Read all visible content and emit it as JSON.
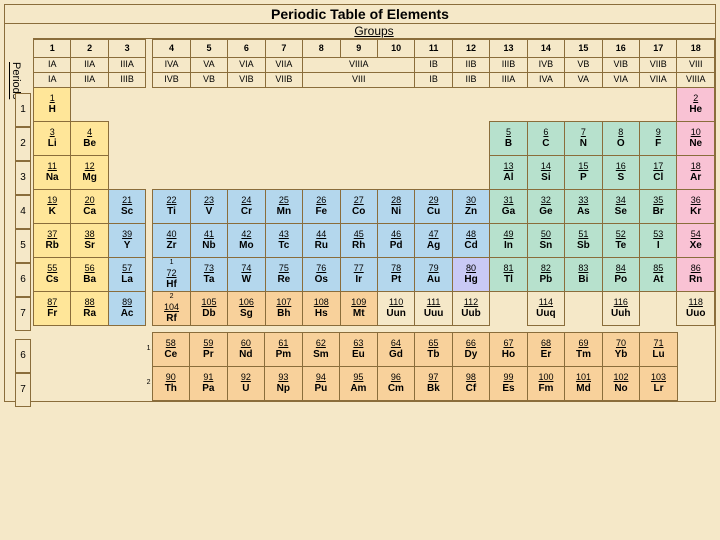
{
  "title": "Periodic Table of Elements",
  "groups_label": "Groups",
  "periods_label": "Periods",
  "group_numbers": [
    "1",
    "2",
    "3",
    "4",
    "5",
    "6",
    "7",
    "8",
    "9",
    "10",
    "11",
    "12",
    "13",
    "14",
    "15",
    "16",
    "17",
    "18"
  ],
  "group_roman1": [
    "IA",
    "IIA",
    "IIIA",
    "IVA",
    "VA",
    "VIA",
    "VIIA",
    "VIIIA",
    "IB",
    "IIB",
    "IIIB",
    "IVB",
    "VB",
    "VIB",
    "VIIB",
    "VIII"
  ],
  "group_roman2": [
    "IA",
    "IIA",
    "IIIB",
    "IVB",
    "VB",
    "VIB",
    "VIIB",
    "VIII",
    "IB",
    "IIB",
    "IIIA",
    "IVA",
    "VA",
    "VIA",
    "VIIA",
    "VIIIA"
  ],
  "colors": {
    "yellow": "#ffe699",
    "green": "#b7e1cd",
    "blue": "#b4d7ed",
    "pink": "#f9c2d4",
    "orange": "#f8d19b",
    "peri": "#c9c9f5",
    "bg": "#f5e8c8"
  },
  "periods": [
    {
      "n": "1",
      "row": [
        {
          "num": "1",
          "sym": "H",
          "c": "yellow"
        },
        null,
        null,
        null,
        null,
        null,
        null,
        null,
        null,
        null,
        null,
        null,
        null,
        null,
        null,
        null,
        null,
        {
          "num": "2",
          "sym": "He",
          "c": "pink"
        }
      ]
    },
    {
      "n": "2",
      "row": [
        {
          "num": "3",
          "sym": "Li",
          "c": "yellow"
        },
        {
          "num": "4",
          "sym": "Be",
          "c": "yellow"
        },
        null,
        null,
        null,
        null,
        null,
        null,
        null,
        null,
        null,
        null,
        {
          "num": "5",
          "sym": "B",
          "c": "green"
        },
        {
          "num": "6",
          "sym": "C",
          "c": "green"
        },
        {
          "num": "7",
          "sym": "N",
          "c": "green"
        },
        {
          "num": "8",
          "sym": "O",
          "c": "green"
        },
        {
          "num": "9",
          "sym": "F",
          "c": "green"
        },
        {
          "num": "10",
          "sym": "Ne",
          "c": "pink"
        }
      ]
    },
    {
      "n": "3",
      "row": [
        {
          "num": "11",
          "sym": "Na",
          "c": "yellow"
        },
        {
          "num": "12",
          "sym": "Mg",
          "c": "yellow"
        },
        null,
        null,
        null,
        null,
        null,
        null,
        null,
        null,
        null,
        null,
        {
          "num": "13",
          "sym": "Al",
          "c": "green"
        },
        {
          "num": "14",
          "sym": "Si",
          "c": "green"
        },
        {
          "num": "15",
          "sym": "P",
          "c": "green"
        },
        {
          "num": "16",
          "sym": "S",
          "c": "green"
        },
        {
          "num": "17",
          "sym": "Cl",
          "c": "green"
        },
        {
          "num": "18",
          "sym": "Ar",
          "c": "pink"
        }
      ]
    },
    {
      "n": "4",
      "row": [
        {
          "num": "19",
          "sym": "K",
          "c": "yellow"
        },
        {
          "num": "20",
          "sym": "Ca",
          "c": "yellow"
        },
        {
          "num": "21",
          "sym": "Sc",
          "c": "blue"
        },
        {
          "num": "22",
          "sym": "Ti",
          "c": "blue"
        },
        {
          "num": "23",
          "sym": "V",
          "c": "blue"
        },
        {
          "num": "24",
          "sym": "Cr",
          "c": "blue"
        },
        {
          "num": "25",
          "sym": "Mn",
          "c": "blue"
        },
        {
          "num": "26",
          "sym": "Fe",
          "c": "blue"
        },
        {
          "num": "27",
          "sym": "Co",
          "c": "blue"
        },
        {
          "num": "28",
          "sym": "Ni",
          "c": "blue"
        },
        {
          "num": "29",
          "sym": "Cu",
          "c": "blue"
        },
        {
          "num": "30",
          "sym": "Zn",
          "c": "blue"
        },
        {
          "num": "31",
          "sym": "Ga",
          "c": "green"
        },
        {
          "num": "32",
          "sym": "Ge",
          "c": "green"
        },
        {
          "num": "33",
          "sym": "As",
          "c": "green"
        },
        {
          "num": "34",
          "sym": "Se",
          "c": "green"
        },
        {
          "num": "35",
          "sym": "Br",
          "c": "green"
        },
        {
          "num": "36",
          "sym": "Kr",
          "c": "pink"
        }
      ]
    },
    {
      "n": "5",
      "row": [
        {
          "num": "37",
          "sym": "Rb",
          "c": "yellow"
        },
        {
          "num": "38",
          "sym": "Sr",
          "c": "yellow"
        },
        {
          "num": "39",
          "sym": "Y",
          "c": "blue"
        },
        {
          "num": "40",
          "sym": "Zr",
          "c": "blue"
        },
        {
          "num": "41",
          "sym": "Nb",
          "c": "blue"
        },
        {
          "num": "42",
          "sym": "Mo",
          "c": "blue"
        },
        {
          "num": "43",
          "sym": "Tc",
          "c": "blue"
        },
        {
          "num": "44",
          "sym": "Ru",
          "c": "blue"
        },
        {
          "num": "45",
          "sym": "Rh",
          "c": "blue"
        },
        {
          "num": "46",
          "sym": "Pd",
          "c": "blue"
        },
        {
          "num": "47",
          "sym": "Ag",
          "c": "blue"
        },
        {
          "num": "48",
          "sym": "Cd",
          "c": "blue"
        },
        {
          "num": "49",
          "sym": "In",
          "c": "green"
        },
        {
          "num": "50",
          "sym": "Sn",
          "c": "green"
        },
        {
          "num": "51",
          "sym": "Sb",
          "c": "green"
        },
        {
          "num": "52",
          "sym": "Te",
          "c": "green"
        },
        {
          "num": "53",
          "sym": "I",
          "c": "green"
        },
        {
          "num": "54",
          "sym": "Xe",
          "c": "pink"
        }
      ]
    },
    {
      "n": "6",
      "row": [
        {
          "num": "55",
          "sym": "Cs",
          "c": "yellow"
        },
        {
          "num": "56",
          "sym": "Ba",
          "c": "yellow"
        },
        {
          "num": "57",
          "sym": "La",
          "c": "blue"
        },
        {
          "num": "72",
          "sym": "Hf",
          "c": "blue",
          "sup": "1"
        },
        {
          "num": "73",
          "sym": "Ta",
          "c": "blue"
        },
        {
          "num": "74",
          "sym": "W",
          "c": "blue"
        },
        {
          "num": "75",
          "sym": "Re",
          "c": "blue"
        },
        {
          "num": "76",
          "sym": "Os",
          "c": "blue"
        },
        {
          "num": "77",
          "sym": "Ir",
          "c": "blue"
        },
        {
          "num": "78",
          "sym": "Pt",
          "c": "blue"
        },
        {
          "num": "79",
          "sym": "Au",
          "c": "blue"
        },
        {
          "num": "80",
          "sym": "Hg",
          "c": "peri"
        },
        {
          "num": "81",
          "sym": "Tl",
          "c": "green"
        },
        {
          "num": "82",
          "sym": "Pb",
          "c": "green"
        },
        {
          "num": "83",
          "sym": "Bi",
          "c": "green"
        },
        {
          "num": "84",
          "sym": "Po",
          "c": "green"
        },
        {
          "num": "85",
          "sym": "At",
          "c": "green"
        },
        {
          "num": "86",
          "sym": "Rn",
          "c": "pink"
        }
      ]
    },
    {
      "n": "7",
      "row": [
        {
          "num": "87",
          "sym": "Fr",
          "c": "yellow"
        },
        {
          "num": "88",
          "sym": "Ra",
          "c": "yellow"
        },
        {
          "num": "89",
          "sym": "Ac",
          "c": "blue"
        },
        {
          "num": "104",
          "sym": "Rf",
          "c": "orange",
          "sup": "2"
        },
        {
          "num": "105",
          "sym": "Db",
          "c": "orange"
        },
        {
          "num": "106",
          "sym": "Sg",
          "c": "orange"
        },
        {
          "num": "107",
          "sym": "Bh",
          "c": "orange"
        },
        {
          "num": "108",
          "sym": "Hs",
          "c": "orange"
        },
        {
          "num": "109",
          "sym": "Mt",
          "c": "orange"
        },
        {
          "num": "110",
          "sym": "Uun"
        },
        {
          "num": "111",
          "sym": "Uuu"
        },
        {
          "num": "112",
          "sym": "Uub"
        },
        null,
        {
          "num": "114",
          "sym": "Uuq"
        },
        null,
        {
          "num": "116",
          "sym": "Uuh"
        },
        null,
        {
          "num": "118",
          "sym": "Uuo"
        }
      ]
    }
  ],
  "fblock": [
    {
      "n": "6",
      "sup": "1",
      "row": [
        {
          "num": "58",
          "sym": "Ce",
          "c": "orange"
        },
        {
          "num": "59",
          "sym": "Pr",
          "c": "orange"
        },
        {
          "num": "60",
          "sym": "Nd",
          "c": "orange"
        },
        {
          "num": "61",
          "sym": "Pm",
          "c": "orange"
        },
        {
          "num": "62",
          "sym": "Sm",
          "c": "orange"
        },
        {
          "num": "63",
          "sym": "Eu",
          "c": "orange"
        },
        {
          "num": "64",
          "sym": "Gd",
          "c": "orange"
        },
        {
          "num": "65",
          "sym": "Tb",
          "c": "orange"
        },
        {
          "num": "66",
          "sym": "Dy",
          "c": "orange"
        },
        {
          "num": "67",
          "sym": "Ho",
          "c": "orange"
        },
        {
          "num": "68",
          "sym": "Er",
          "c": "orange"
        },
        {
          "num": "69",
          "sym": "Tm",
          "c": "orange"
        },
        {
          "num": "70",
          "sym": "Yb",
          "c": "orange"
        },
        {
          "num": "71",
          "sym": "Lu",
          "c": "orange"
        }
      ]
    },
    {
      "n": "7",
      "sup": "2",
      "row": [
        {
          "num": "90",
          "sym": "Th",
          "c": "orange"
        },
        {
          "num": "91",
          "sym": "Pa",
          "c": "orange"
        },
        {
          "num": "92",
          "sym": "U",
          "c": "orange"
        },
        {
          "num": "93",
          "sym": "Np",
          "c": "orange"
        },
        {
          "num": "94",
          "sym": "Pu",
          "c": "orange"
        },
        {
          "num": "95",
          "sym": "Am",
          "c": "orange"
        },
        {
          "num": "96",
          "sym": "Cm",
          "c": "orange"
        },
        {
          "num": "97",
          "sym": "Bk",
          "c": "orange"
        },
        {
          "num": "98",
          "sym": "Cf",
          "c": "orange"
        },
        {
          "num": "99",
          "sym": "Es",
          "c": "orange"
        },
        {
          "num": "100",
          "sym": "Fm",
          "c": "orange"
        },
        {
          "num": "101",
          "sym": "Md",
          "c": "orange"
        },
        {
          "num": "102",
          "sym": "No",
          "c": "orange"
        },
        {
          "num": "103",
          "sym": "Lr",
          "c": "orange"
        }
      ]
    }
  ]
}
